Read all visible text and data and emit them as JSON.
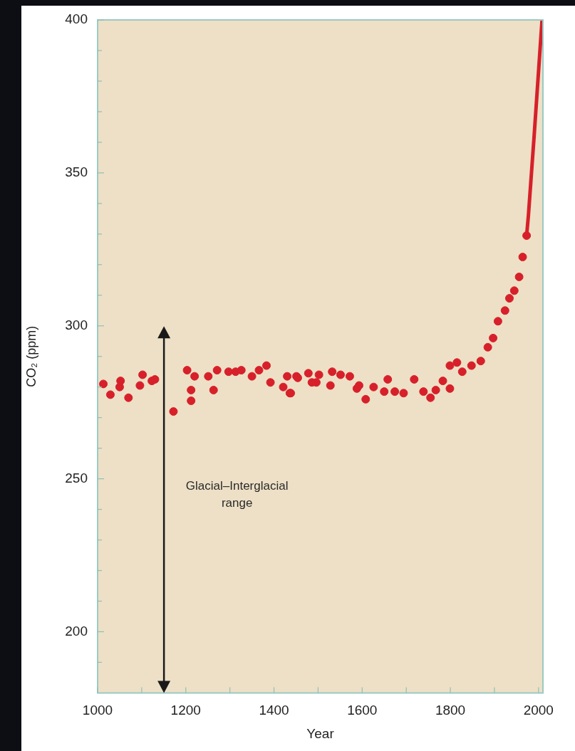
{
  "chart_data": {
    "type": "scatter",
    "xlabel": "Year",
    "ylabel": "CO₂ (ppm)",
    "xlim": [
      1000,
      2010
    ],
    "xticks": [
      1000,
      {
        "value": 1100,
        "label": null
      },
      1200,
      {
        "value": 1300,
        "label": null
      },
      1400,
      {
        "value": 1500,
        "label": null
      },
      1600,
      {
        "value": 1700,
        "label": null
      },
      1800,
      {
        "value": 1900,
        "label": null
      },
      2000
    ],
    "ylim": [
      180,
      400
    ],
    "yticks": [
      {
        "value": 190,
        "label": null
      },
      200,
      {
        "value": 210,
        "label": null
      },
      {
        "value": 220,
        "label": null
      },
      {
        "value": 230,
        "label": null
      },
      {
        "value": 240,
        "label": null
      },
      250,
      {
        "value": 260,
        "label": null
      },
      {
        "value": 270,
        "label": null
      },
      {
        "value": 280,
        "label": null
      },
      {
        "value": 290,
        "label": null
      },
      300,
      {
        "value": 310,
        "label": null
      },
      {
        "value": 320,
        "label": null
      },
      {
        "value": 330,
        "label": null
      },
      {
        "value": 340,
        "label": null
      },
      350,
      {
        "value": 360,
        "label": null
      },
      {
        "value": 370,
        "label": null
      },
      {
        "value": 380,
        "label": null
      },
      {
        "value": 390,
        "label": null
      },
      400
    ],
    "grid": false,
    "legend": false,
    "marker": "circle",
    "annotations": [
      "Glacial–Interglacial range"
    ],
    "series": [
      {
        "type": "scatter",
        "color": "#d7202a",
        "x": [
          1013,
          1029,
          1050,
          1052,
          1070,
          1096,
          1102,
          1123,
          1130,
          1172,
          1203,
          1212,
          1212,
          1220,
          1251,
          1263,
          1271,
          1297,
          1313,
          1326,
          1350,
          1366,
          1383,
          1392,
          1421,
          1430,
          1436,
          1438,
          1451,
          1454,
          1478,
          1486,
          1496,
          1502,
          1528,
          1532,
          1551,
          1572,
          1588,
          1593,
          1608,
          1626,
          1650,
          1658,
          1674,
          1694,
          1718,
          1739,
          1755,
          1767,
          1783,
          1799,
          1799,
          1815,
          1827,
          1848,
          1869,
          1885,
          1897,
          1908,
          1924,
          1934,
          1945,
          1956,
          1964,
          1973
        ],
        "values": [
          281,
          277.5,
          280,
          282,
          276.5,
          280.5,
          284,
          282,
          282.5,
          272,
          285.5,
          279,
          275.5,
          283.5,
          283.5,
          279,
          285.5,
          285,
          285,
          285.5,
          283.5,
          285.5,
          287,
          281.5,
          280,
          283.5,
          278,
          278,
          283.5,
          283,
          284.5,
          281.5,
          281.5,
          284,
          280.5,
          285,
          284,
          283.5,
          279.5,
          280.5,
          276,
          280,
          278.5,
          282.5,
          278.5,
          278,
          282.5,
          278.5,
          276.5,
          279,
          282,
          279.5,
          287,
          288,
          285,
          287,
          288.5,
          293,
          296,
          301.5,
          305,
          309,
          311.5,
          316,
          322.5,
          329.5
        ]
      },
      {
        "type": "line",
        "marker": "none",
        "color": "#d7202a",
        "x": [
          1973,
          1977,
          1990,
          2008
        ],
        "values": [
          329.5,
          336,
          362,
          400
        ]
      }
    ]
  }
}
